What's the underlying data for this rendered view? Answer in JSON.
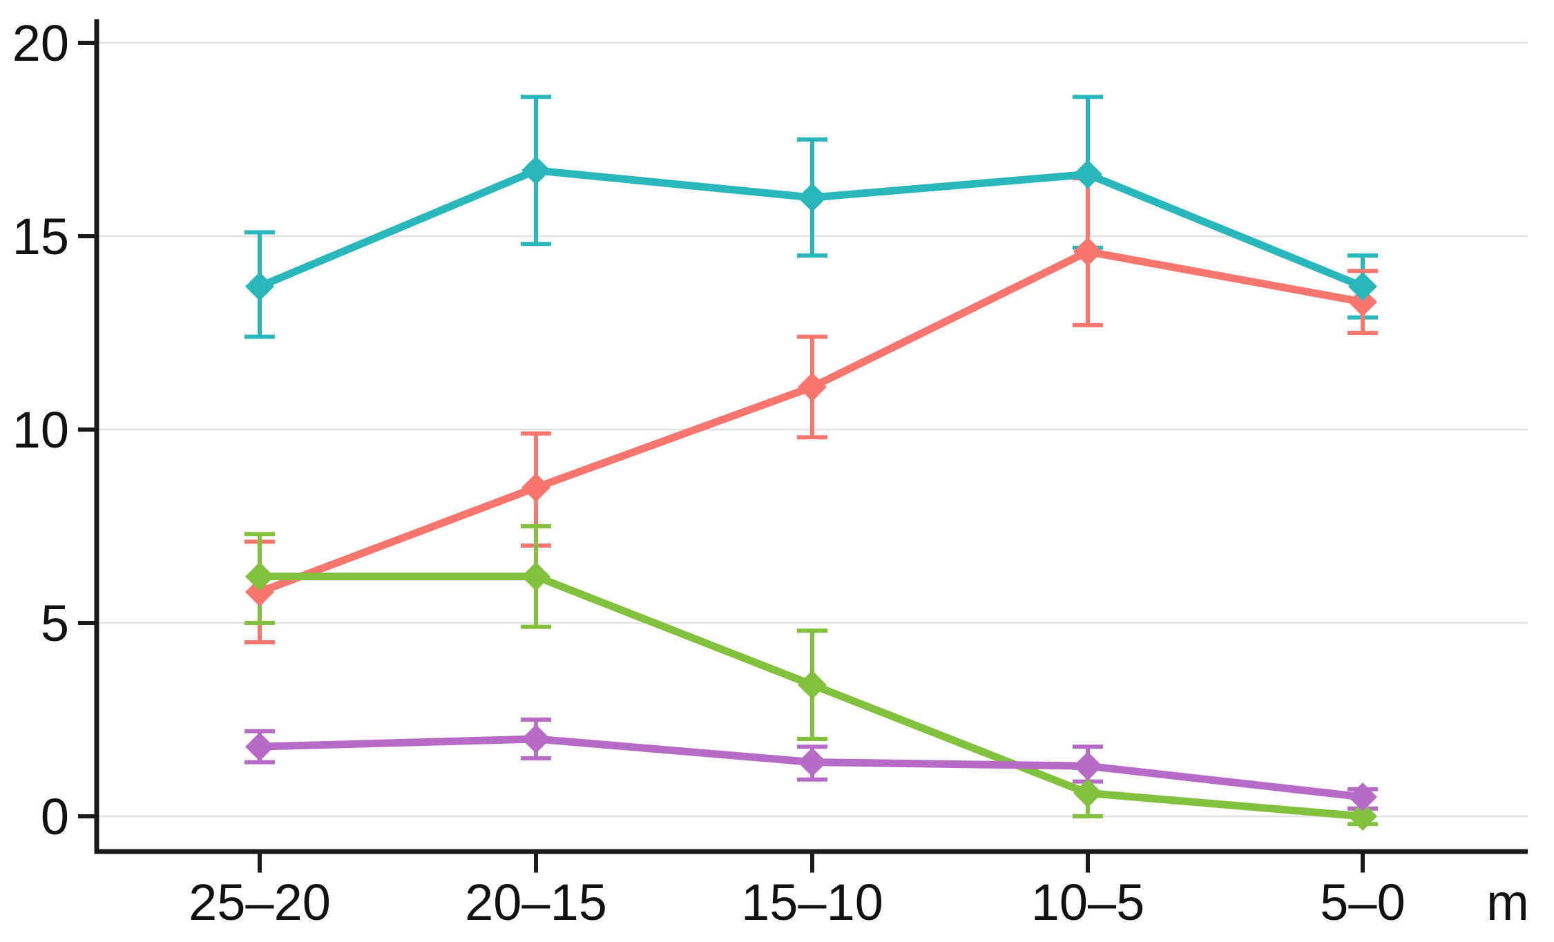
{
  "figure": {
    "background": "#ffffff",
    "axis_color": "#1a1a1a",
    "gridline_color": "#e4e4e4"
  },
  "chart_data": {
    "type": "line",
    "title": "",
    "subtitle": "",
    "xlabel": "m",
    "ylabel": "",
    "categories": [
      "25–20",
      "20–15",
      "15–10",
      "10–5",
      "5–0"
    ],
    "yticks": [
      0,
      5,
      10,
      15,
      20
    ],
    "ylim": [
      -1.1,
      20.6
    ],
    "grid": true,
    "legend": "none",
    "error_bars": true,
    "marker": "diamond",
    "series": [
      {
        "name": "teal",
        "color": "#2ab7bc",
        "values": [
          13.7,
          16.7,
          16.0,
          16.6,
          13.7
        ],
        "err_low": [
          12.4,
          14.8,
          14.5,
          14.7,
          12.9
        ],
        "err_high": [
          15.1,
          18.6,
          17.5,
          18.6,
          14.5
        ]
      },
      {
        "name": "salmon",
        "color": "#f8766d",
        "values": [
          5.8,
          8.5,
          11.1,
          14.6,
          13.3
        ],
        "err_low": [
          4.5,
          7.0,
          9.8,
          12.7,
          12.5
        ],
        "err_high": [
          7.1,
          9.9,
          12.4,
          16.5,
          14.1
        ]
      },
      {
        "name": "green",
        "color": "#82c13d",
        "values": [
          6.2,
          6.2,
          3.4,
          0.6,
          0.0
        ],
        "err_low": [
          5.0,
          4.9,
          2.0,
          0.0,
          -0.2
        ],
        "err_high": [
          7.3,
          7.5,
          4.8,
          1.25,
          0.2
        ]
      },
      {
        "name": "purple",
        "color": "#b66bc6",
        "values": [
          1.8,
          2.0,
          1.4,
          1.3,
          0.5
        ],
        "err_low": [
          1.4,
          1.5,
          0.95,
          0.9,
          0.2
        ],
        "err_high": [
          2.2,
          2.5,
          1.8,
          1.8,
          0.7
        ]
      }
    ]
  }
}
